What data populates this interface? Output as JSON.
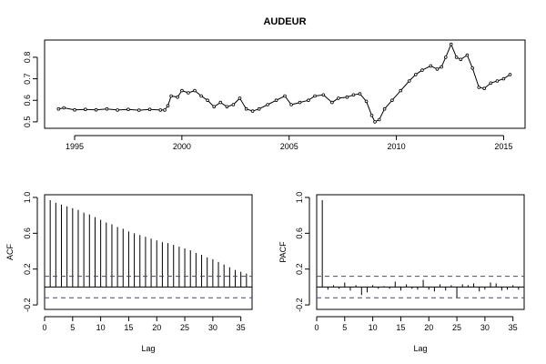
{
  "chart_data": [
    {
      "type": "line",
      "title": "AUDEUR",
      "xlabel": "",
      "ylabel": "",
      "xlim": [
        1993.6,
        2016.0
      ],
      "ylim": [
        0.47,
        0.88
      ],
      "xticks": [
        1995,
        2000,
        2005,
        2010,
        2015
      ],
      "xtick_labels": [
        "1995",
        "2000",
        "2005",
        "2010",
        "2015"
      ],
      "yticks": [
        0.5,
        0.6,
        0.7,
        0.8
      ],
      "ytick_labels": [
        "0.5",
        "0.6",
        "0.7",
        "0.8"
      ],
      "series": [
        {
          "points": [
            [
              1994.25,
              0.56
            ],
            [
              1994.5,
              0.565
            ],
            [
              1995.0,
              0.556
            ],
            [
              1995.5,
              0.558
            ],
            [
              1996.0,
              0.556
            ],
            [
              1996.5,
              0.56
            ],
            [
              1997.0,
              0.555
            ],
            [
              1997.5,
              0.558
            ],
            [
              1998.0,
              0.554
            ],
            [
              1998.5,
              0.558
            ],
            [
              1999.0,
              0.555
            ],
            [
              1999.2,
              0.555
            ],
            [
              1999.35,
              0.575
            ],
            [
              1999.5,
              0.62
            ],
            [
              1999.8,
              0.615
            ],
            [
              2000.0,
              0.645
            ],
            [
              2000.3,
              0.635
            ],
            [
              2000.6,
              0.645
            ],
            [
              2000.9,
              0.62
            ],
            [
              2001.2,
              0.6
            ],
            [
              2001.5,
              0.57
            ],
            [
              2001.8,
              0.59
            ],
            [
              2002.1,
              0.57
            ],
            [
              2002.4,
              0.58
            ],
            [
              2002.7,
              0.61
            ],
            [
              2003.0,
              0.56
            ],
            [
              2003.3,
              0.55
            ],
            [
              2003.6,
              0.56
            ],
            [
              2004.0,
              0.58
            ],
            [
              2004.4,
              0.6
            ],
            [
              2004.8,
              0.62
            ],
            [
              2005.1,
              0.58
            ],
            [
              2005.5,
              0.59
            ],
            [
              2005.9,
              0.6
            ],
            [
              2006.2,
              0.62
            ],
            [
              2006.6,
              0.625
            ],
            [
              2007.0,
              0.59
            ],
            [
              2007.3,
              0.61
            ],
            [
              2007.7,
              0.615
            ],
            [
              2008.0,
              0.625
            ],
            [
              2008.3,
              0.63
            ],
            [
              2008.6,
              0.595
            ],
            [
              2008.85,
              0.53
            ],
            [
              2009.0,
              0.5
            ],
            [
              2009.2,
              0.51
            ],
            [
              2009.45,
              0.56
            ],
            [
              2009.8,
              0.6
            ],
            [
              2010.2,
              0.645
            ],
            [
              2010.6,
              0.69
            ],
            [
              2010.9,
              0.72
            ],
            [
              2011.2,
              0.74
            ],
            [
              2011.6,
              0.76
            ],
            [
              2011.9,
              0.745
            ],
            [
              2012.1,
              0.755
            ],
            [
              2012.3,
              0.8
            ],
            [
              2012.55,
              0.86
            ],
            [
              2012.8,
              0.8
            ],
            [
              2013.0,
              0.79
            ],
            [
              2013.3,
              0.81
            ],
            [
              2013.55,
              0.75
            ],
            [
              2013.85,
              0.66
            ],
            [
              2014.1,
              0.655
            ],
            [
              2014.4,
              0.68
            ],
            [
              2014.7,
              0.69
            ],
            [
              2015.0,
              0.7
            ],
            [
              2015.3,
              0.72
            ]
          ]
        }
      ]
    },
    {
      "type": "bar",
      "xlabel": "Lag",
      "ylabel": "ACF",
      "xlim": [
        0,
        37
      ],
      "ylim": [
        -0.25,
        1.03
      ],
      "xticks": [
        0,
        5,
        10,
        15,
        20,
        25,
        30,
        35
      ],
      "xtick_labels": [
        "0",
        "5",
        "10",
        "15",
        "20",
        "25",
        "30",
        "35"
      ],
      "yticks": [
        -0.2,
        0.2,
        0.6,
        1.0
      ],
      "ytick_labels": [
        "-0.2",
        "0.2",
        "0.6",
        "1.0"
      ],
      "ci": 0.12,
      "lags": [
        1,
        2,
        3,
        4,
        5,
        6,
        7,
        8,
        9,
        10,
        11,
        12,
        13,
        14,
        15,
        16,
        17,
        18,
        19,
        20,
        21,
        22,
        23,
        24,
        25,
        26,
        27,
        28,
        29,
        30,
        31,
        32,
        33,
        34,
        35,
        36
      ],
      "values": [
        0.97,
        0.94,
        0.92,
        0.9,
        0.88,
        0.86,
        0.83,
        0.81,
        0.78,
        0.75,
        0.72,
        0.7,
        0.67,
        0.65,
        0.62,
        0.6,
        0.58,
        0.56,
        0.54,
        0.52,
        0.5,
        0.49,
        0.47,
        0.45,
        0.43,
        0.41,
        0.38,
        0.36,
        0.33,
        0.31,
        0.28,
        0.25,
        0.22,
        0.19,
        0.17,
        0.15
      ]
    },
    {
      "type": "bar",
      "xlabel": "Lag",
      "ylabel": "PACF",
      "xlim": [
        0,
        37
      ],
      "ylim": [
        -0.25,
        1.03
      ],
      "xticks": [
        0,
        5,
        10,
        15,
        20,
        25,
        30,
        35
      ],
      "xtick_labels": [
        "0",
        "5",
        "10",
        "15",
        "20",
        "25",
        "30",
        "35"
      ],
      "yticks": [
        -0.2,
        0.2,
        0.6,
        1.0
      ],
      "ytick_labels": [
        "-0.2",
        "0.2",
        "0.6",
        "1.0"
      ],
      "ci": 0.12,
      "lags": [
        1,
        2,
        3,
        4,
        5,
        6,
        7,
        8,
        9,
        10,
        11,
        12,
        13,
        14,
        15,
        16,
        17,
        18,
        19,
        20,
        21,
        22,
        23,
        24,
        25,
        26,
        27,
        28,
        29,
        30,
        31,
        32,
        33,
        34,
        35,
        36
      ],
      "values": [
        0.97,
        -0.03,
        0.02,
        -0.02,
        0.05,
        -0.04,
        0.02,
        -0.09,
        -0.06,
        0.02,
        -0.02,
        0.01,
        -0.02,
        0.06,
        -0.04,
        0.03,
        -0.02,
        -0.03,
        0.08,
        -0.03,
        -0.05,
        0.03,
        -0.04,
        0.02,
        -0.12,
        0.03,
        0.02,
        0.04,
        -0.05,
        -0.03,
        0.05,
        0.04,
        -0.04,
        -0.03,
        0.02,
        -0.03
      ]
    }
  ]
}
